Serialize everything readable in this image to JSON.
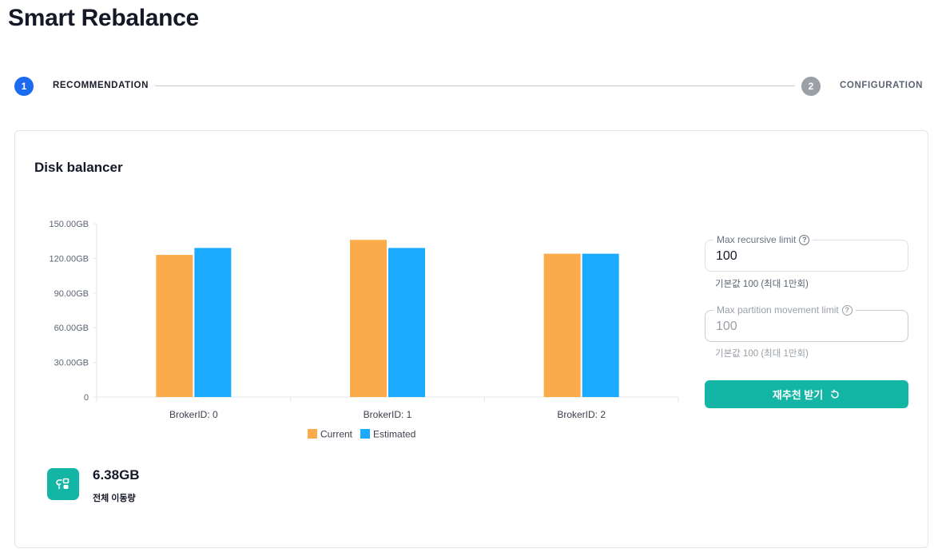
{
  "page": {
    "title": "Smart Rebalance"
  },
  "stepper": {
    "steps": [
      {
        "number": "1",
        "label": "RECOMMENDATION",
        "state": "active"
      },
      {
        "number": "2",
        "label": "CONFIGURATION",
        "state": "inactive"
      }
    ]
  },
  "card": {
    "title": "Disk balancer"
  },
  "chart_data": {
    "type": "bar",
    "categories": [
      "BrokerID: 0",
      "BrokerID: 1",
      "BrokerID: 2"
    ],
    "series": [
      {
        "name": "Current",
        "color": "#fbab4a",
        "values": [
          123,
          136,
          124
        ]
      },
      {
        "name": "Estimated",
        "color": "#1aabff",
        "values": [
          129,
          129,
          124
        ]
      }
    ],
    "y_ticks": [
      "0",
      "30.00GB",
      "60.00GB",
      "90.00GB",
      "120.00GB",
      "150.00GB"
    ],
    "ylim": [
      0,
      150
    ],
    "legend_position": "bottom-center",
    "grid": false
  },
  "form": {
    "max_recursive": {
      "label": "Max recursive limit",
      "value": "100",
      "hint": "기본값 100 (최대 1만회)"
    },
    "max_partition": {
      "label": "Max partition movement limit",
      "placeholder": "100",
      "hint": "기본값 100 (최대 1만회)"
    },
    "button_label": "재추천 받기"
  },
  "summary": {
    "value": "6.38GB",
    "label": "전체 이동량"
  },
  "icons": {
    "help": "help-circle-icon",
    "refresh": "refresh-icon",
    "transfer": "data-transfer-icon"
  }
}
